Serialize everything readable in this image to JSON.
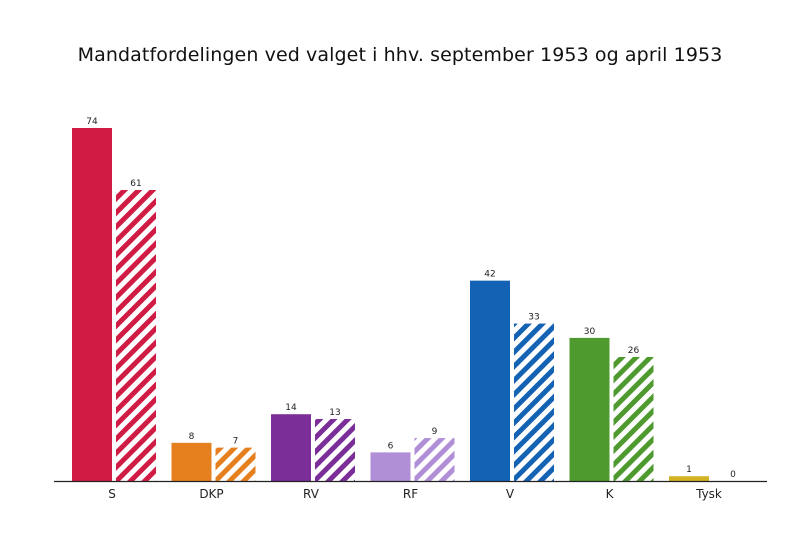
{
  "chart_data": {
    "type": "bar",
    "title": "Mandatfordelingen ved valget i hhv. september 1953 og april 1953",
    "xlabel": "",
    "ylabel": "",
    "categories": [
      "S",
      "DKP",
      "RV",
      "RF",
      "V",
      "K",
      "Tysk"
    ],
    "series": [
      {
        "style": "solid",
        "values": [
          74,
          8,
          14,
          6,
          42,
          30,
          1
        ]
      },
      {
        "style": "hatched",
        "values": [
          61,
          7,
          13,
          9,
          33,
          26,
          0
        ]
      }
    ],
    "colors": [
      "#d01c44",
      "#e6801e",
      "#7b2d98",
      "#b18fd6",
      "#1462b4",
      "#4e9a2f",
      "#d4b322"
    ],
    "ylim": [
      0,
      74
    ],
    "grid": false,
    "legend": "none"
  }
}
